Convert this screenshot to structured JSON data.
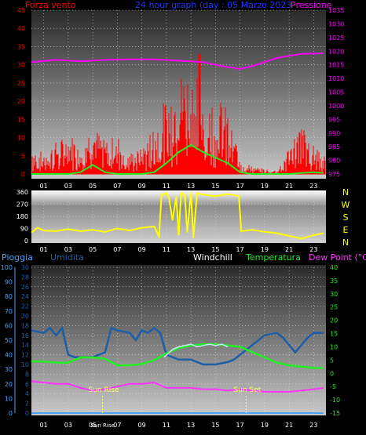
{
  "colors": {
    "background": "#000000",
    "wind": "#ff0000",
    "gust": "#00ff00",
    "pressure": "#ff00ff",
    "direction": "#ffff00",
    "humidity": "#1c5fa8",
    "temperature": "#22ee22",
    "windchill": "#ffffff",
    "dewpoint": "#ff33ff",
    "heatindex": "#c8e6ff",
    "rain": "#4aa3ff",
    "title": "#2233ff",
    "axis_text": "#ffffff",
    "dir_letters": "#ffff00"
  },
  "panel1": {
    "title": "24 hour graph (day : 05 Marzo 2023",
    "left_label": "Forza vento",
    "right_label": "Pressione"
  },
  "panel2": {
    "compass_letters": [
      "N",
      "W",
      "S",
      "E",
      "N"
    ]
  },
  "panel3": {
    "label_rain": "Pioggia",
    "label_humidity": "Umidita",
    "label_windchill": "Windchill",
    "label_temperature": "Temperatura",
    "label_dewpoint": "Dew Point (°C)",
    "sunrise_label": "Sun Rise",
    "sunset_label": "Sun Set",
    "sunrise_axis_label": "Sun Rise"
  },
  "x_ticks": [
    "01",
    "03",
    "05",
    "07",
    "09",
    "11",
    "13",
    "15",
    "17",
    "19",
    "21",
    "23"
  ],
  "chart_data": [
    {
      "type": "line",
      "name": "wind_pressure",
      "x_range": [
        0,
        24
      ],
      "y_left": [
        0,
        45
      ],
      "y_left_ticks": [
        0,
        5,
        10,
        15,
        20,
        25,
        30,
        35,
        40,
        45
      ],
      "y_right": [
        975,
        1035
      ],
      "y_right_ticks": [
        975,
        980,
        985,
        990,
        995,
        1000,
        1005,
        1010,
        1015,
        1020,
        1025,
        1030,
        1035
      ],
      "pressure": {
        "x": [
          0,
          2,
          4,
          6,
          8,
          10,
          12,
          14,
          15.5,
          17,
          18,
          20,
          22,
          23.8
        ],
        "y": [
          1016,
          1016.8,
          1016.3,
          1016.8,
          1017,
          1017,
          1016.5,
          1016,
          1014.5,
          1013.5,
          1014.5,
          1017.5,
          1019,
          1019.2
        ]
      },
      "gust_peak": {
        "x": 13.7,
        "y": 33
      },
      "wind_envelope": {
        "x": [
          0,
          1,
          2,
          3,
          4,
          5,
          6,
          7,
          8,
          9,
          10,
          11,
          12,
          13,
          14,
          15,
          16,
          17,
          18,
          20,
          21,
          22,
          23,
          23.8
        ],
        "y": [
          8,
          6,
          9,
          11,
          10,
          14,
          9,
          11,
          6,
          7,
          14,
          22,
          28,
          30,
          24,
          22,
          18,
          5,
          2,
          1,
          8,
          14,
          8,
          8
        ]
      },
      "wind_avg": {
        "x": [
          0,
          1,
          2,
          3,
          4,
          5,
          6,
          7,
          8,
          9,
          10,
          11,
          12,
          13,
          14,
          15,
          16,
          17,
          18,
          20,
          21,
          22,
          23,
          23.8
        ],
        "y": [
          0,
          0,
          0,
          0,
          0.5,
          2.5,
          0.5,
          0,
          0,
          0,
          0.5,
          3,
          6,
          8,
          6,
          4.5,
          3,
          0.5,
          0,
          0,
          0,
          0.3,
          0.5,
          0.3
        ]
      }
    },
    {
      "type": "line",
      "name": "wind_direction",
      "x_range": [
        0,
        24
      ],
      "y_range": [
        0,
        360
      ],
      "y_ticks": [
        0,
        90,
        180,
        270,
        360
      ],
      "direction": {
        "x": [
          0,
          0.5,
          1,
          2,
          3,
          4,
          5,
          6,
          7,
          8,
          9,
          10,
          10.4,
          10.6,
          11,
          11.2,
          11.5,
          11.8,
          12,
          12.2,
          12.5,
          12.7,
          13,
          13.2,
          13.5,
          14,
          15,
          16,
          16.9,
          17.1,
          18,
          19,
          20,
          21,
          22,
          23,
          23.8
        ],
        "y": [
          60,
          95,
          75,
          70,
          85,
          70,
          80,
          65,
          90,
          75,
          95,
          105,
          30,
          340,
          350,
          320,
          150,
          330,
          40,
          350,
          340,
          60,
          355,
          20,
          350,
          340,
          330,
          345,
          330,
          70,
          80,
          65,
          55,
          35,
          15,
          40,
          55
        ]
      }
    },
    {
      "type": "line",
      "name": "temperature_humidity",
      "x_range": [
        0,
        24
      ],
      "y_left_rain": [
        0,
        100
      ],
      "y_left_rain_ticks": [
        0,
        10,
        20,
        30,
        40,
        50,
        60,
        70,
        80,
        90,
        100
      ],
      "y_left_humidity": [
        0,
        30
      ],
      "y_left_humidity_ticks": [
        0,
        2,
        4,
        6,
        8,
        10,
        12,
        14,
        16,
        18,
        20,
        22,
        24,
        26,
        28,
        30
      ],
      "y_right": [
        -15,
        40
      ],
      "y_right_ticks": [
        -15,
        -10,
        -5,
        0,
        5,
        10,
        15,
        20,
        25,
        30,
        35,
        40
      ],
      "humidity": {
        "x": [
          0,
          1,
          1.5,
          2,
          2.5,
          3,
          3.5,
          5,
          6,
          6.5,
          7,
          8,
          8.5,
          9,
          9.5,
          10,
          10.5,
          11,
          12,
          13,
          14,
          15,
          16,
          16.5,
          17,
          18,
          19,
          20,
          20.5,
          21,
          21.5,
          22,
          22.5,
          23,
          23.8
        ],
        "y": [
          17,
          16.5,
          17.5,
          16,
          17.5,
          12,
          11.5,
          11.5,
          12.5,
          17.5,
          17,
          16.5,
          15,
          17,
          16.5,
          17.5,
          16.5,
          12,
          11,
          11,
          10,
          10,
          10.5,
          11,
          12,
          14,
          16,
          16.5,
          15.5,
          14,
          12.5,
          14,
          15.5,
          16.5,
          16.5
        ]
      },
      "temperature": {
        "x": [
          0,
          1,
          2,
          3,
          4,
          5,
          6,
          7,
          8,
          9,
          10,
          11,
          12,
          13,
          14,
          15,
          16,
          17,
          18,
          19,
          20,
          21,
          22,
          23,
          23.8
        ],
        "y": [
          4.5,
          4.5,
          4,
          4,
          6,
          6,
          5.5,
          3,
          3,
          3.5,
          5,
          7.5,
          9.5,
          10.5,
          11,
          11,
          10.5,
          10,
          8,
          6,
          4,
          3,
          2.5,
          2,
          2
        ]
      },
      "windchill": {
        "x": [
          10.8,
          11.5,
          12,
          12.5,
          13,
          13.5,
          14,
          14.5,
          15,
          15.5,
          16
        ],
        "y": [
          6,
          9,
          10,
          10.5,
          11,
          10,
          10.5,
          11,
          10.5,
          11,
          10
        ]
      },
      "dewpoint": {
        "x": [
          0,
          1,
          2,
          3,
          4,
          5,
          6,
          7,
          8,
          9,
          10,
          11,
          12,
          13,
          14,
          15,
          16,
          17,
          18,
          19,
          20,
          21,
          22,
          23,
          23.8
        ],
        "y": [
          -3,
          -3.5,
          -4,
          -4,
          -5.5,
          -6.5,
          -6,
          -5,
          -4,
          -4,
          -3.5,
          -5.5,
          -5.5,
          -5.5,
          -6,
          -6,
          -6.5,
          -6,
          -6.5,
          -7,
          -7,
          -7,
          -6.5,
          -6,
          -5.5
        ]
      },
      "rain": {
        "x": [
          0,
          23.8
        ],
        "y": [
          0,
          0
        ]
      },
      "sunrise_x": 5.8,
      "sunset_x": 17.5
    }
  ]
}
